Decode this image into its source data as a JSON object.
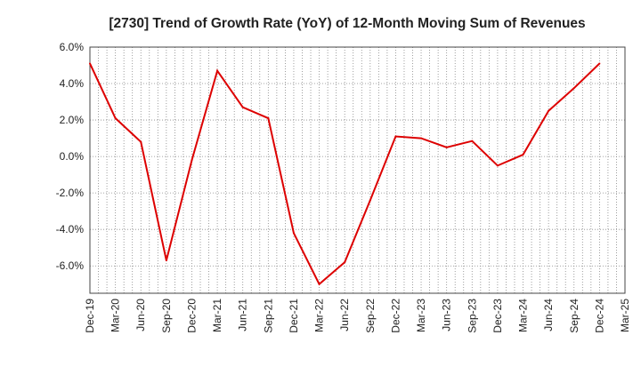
{
  "chart_data": {
    "type": "line",
    "title": "[2730]  Trend of Growth Rate (YoY) of 12-Month Moving Sum of Revenues",
    "xlabel": "",
    "ylabel": "",
    "x_tick_labels": [
      "Dec-19",
      "Mar-20",
      "Jun-20",
      "Sep-20",
      "Dec-20",
      "Mar-21",
      "Jun-21",
      "Sep-21",
      "Dec-21",
      "Mar-22",
      "Jun-22",
      "Sep-22",
      "Dec-22",
      "Mar-23",
      "Jun-23",
      "Sep-23",
      "Dec-23",
      "Mar-24",
      "Jun-24",
      "Sep-24",
      "Dec-24",
      "Mar-25"
    ],
    "y_tick_labels": [
      "6.0%",
      "4.0%",
      "2.0%",
      "0.0%",
      "-2.0%",
      "-4.0%",
      "-6.0%"
    ],
    "y_ticks": [
      6,
      4,
      2,
      0,
      -2,
      -4,
      -6
    ],
    "ylim": [
      -7.5,
      6
    ],
    "grid": true,
    "legend": "none",
    "series": [
      {
        "color": "#dd0000",
        "x": [
          "Dec-19",
          "Mar-20",
          "Jun-20",
          "Sep-20",
          "Dec-20",
          "Mar-21",
          "Jun-21",
          "Sep-21",
          "Dec-21",
          "Mar-22",
          "Jun-22",
          "Sep-22",
          "Dec-22",
          "Mar-23",
          "Jun-23",
          "Sep-23",
          "Dec-23",
          "Mar-24",
          "Jun-24",
          "Sep-24",
          "Dec-24"
        ],
        "values": [
          5.1,
          2.1,
          0.8,
          -5.7,
          -0.2,
          4.7,
          2.7,
          2.1,
          -4.2,
          -7.0,
          -5.8,
          -2.4,
          1.1,
          1.0,
          0.5,
          0.85,
          -0.5,
          0.1,
          2.5,
          3.75,
          5.1
        ]
      }
    ]
  }
}
